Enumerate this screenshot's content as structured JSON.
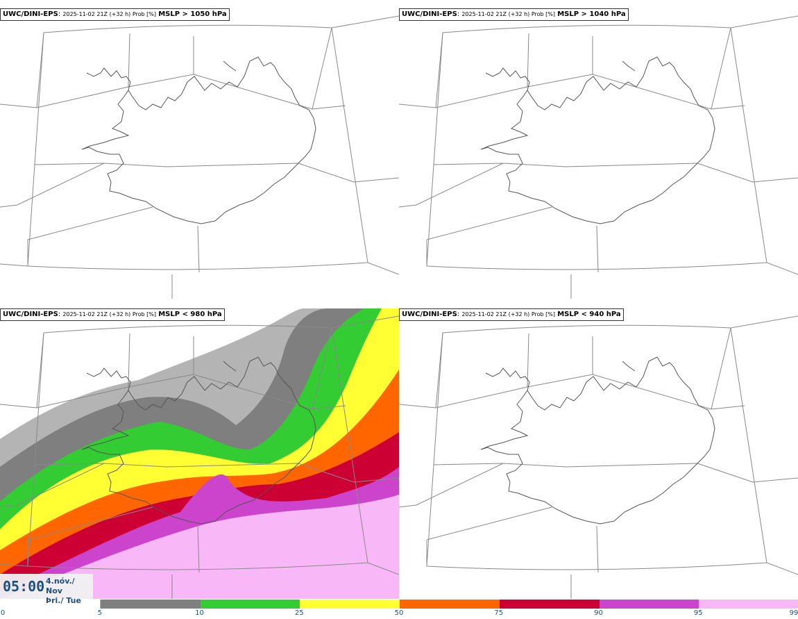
{
  "panels": [
    {
      "model": "UWC/DINI-EPS",
      "info": "2025-11-02 21Z (+32 h) Prob [%]",
      "threshold": "MSLP > 1050 hPa"
    },
    {
      "model": "UWC/DINI-EPS",
      "info": "2025-11-02 21Z (+32 h) Prob [%]",
      "threshold": "MSLP > 1040 hPa"
    },
    {
      "model": "UWC/DINI-EPS",
      "info": "2025-11-02 21Z (+32 h) Prob [%]",
      "threshold": "MSLP < 980 hPa"
    },
    {
      "model": "UWC/DINI-EPS",
      "info": "2025-11-02 21Z (+32 h) Prob [%]",
      "threshold": "MSLP < 940 hPa"
    }
  ],
  "clock": {
    "time": "05:00",
    "date_line1": "4.nóv./ Nov",
    "date_line2": "Þri./ Tue"
  },
  "colorbar": {
    "ticks": [
      "0",
      "5",
      "10",
      "25",
      "50",
      "75",
      "90",
      "95",
      "99"
    ],
    "colors": [
      "#ffffff",
      "#b4b4b4",
      "#7f7f7f",
      "#33cc33",
      "#ffff33",
      "#ff6600",
      "#cc0033",
      "#cc44cc",
      "#f8b8f8"
    ]
  }
}
